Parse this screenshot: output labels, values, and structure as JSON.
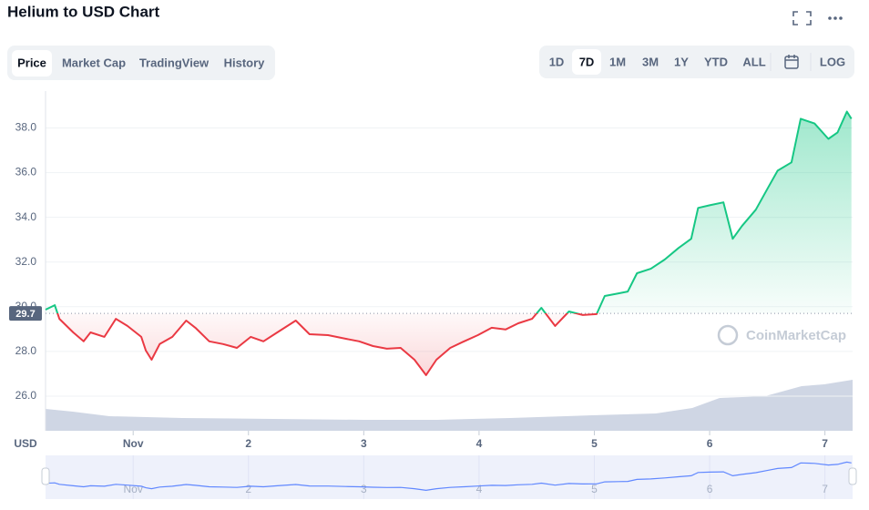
{
  "header": {
    "title": "Helium to USD Chart"
  },
  "tabs": {
    "items": [
      "Price",
      "Market Cap",
      "TradingView",
      "History"
    ],
    "active": 0
  },
  "ranges": {
    "items": [
      "1D",
      "7D",
      "1M",
      "3M",
      "1Y",
      "YTD",
      "ALL"
    ],
    "active": 1,
    "log": "LOG"
  },
  "watermark": "CoinMarketCap",
  "chart_data": {
    "type": "line",
    "x_label": "USD",
    "x": [
      0.24,
      0.32,
      0.36,
      0.48,
      0.57,
      0.63,
      0.75,
      0.85,
      0.95,
      1.07,
      1.11,
      1.16,
      1.23,
      1.34,
      1.46,
      1.54,
      1.66,
      1.78,
      1.9,
      2.02,
      2.13,
      2.25,
      2.41,
      2.53,
      2.69,
      2.84,
      2.96,
      3.08,
      3.2,
      3.32,
      3.44,
      3.54,
      3.63,
      3.75,
      3.87,
      3.99,
      4.11,
      4.23,
      4.34,
      4.46,
      4.54,
      4.66,
      4.78,
      4.9,
      5.02,
      5.09,
      5.21,
      5.29,
      5.37,
      5.49,
      5.61,
      5.73,
      5.84,
      5.9,
      6.0,
      6.12,
      6.2,
      6.28,
      6.4,
      6.51,
      6.59,
      6.71,
      6.79,
      6.91,
      7.03,
      7.11,
      7.19,
      7.23
    ],
    "values": [
      29.87,
      30.07,
      29.46,
      28.85,
      28.45,
      28.85,
      28.65,
      29.46,
      29.14,
      28.65,
      28.04,
      27.63,
      28.33,
      28.65,
      29.38,
      29.06,
      28.45,
      28.33,
      28.16,
      28.65,
      28.45,
      28.85,
      29.38,
      28.77,
      28.73,
      28.57,
      28.45,
      28.24,
      28.12,
      28.16,
      27.63,
      26.94,
      27.63,
      28.16,
      28.45,
      28.73,
      29.06,
      28.98,
      29.26,
      29.46,
      29.95,
      29.14,
      29.79,
      29.63,
      29.67,
      30.48,
      30.6,
      30.68,
      31.5,
      31.7,
      32.11,
      32.63,
      33.04,
      34.42,
      34.54,
      34.67,
      33.04,
      33.61,
      34.34,
      35.36,
      36.09,
      36.46,
      38.41,
      38.2,
      37.51,
      37.8,
      38.73,
      38.41
    ],
    "baseline": {
      "value": 29.7,
      "label": "29.7"
    },
    "up_color": "#16c784",
    "down_color": "#ea3943",
    "xlim": [
      0.24,
      7.24
    ],
    "xticks": [
      {
        "value": 1,
        "label": "Nov"
      },
      2,
      3,
      4,
      5,
      6,
      7
    ],
    "ylim": [
      24.45,
      39.65
    ],
    "yticks": [
      {
        "value": 26,
        "label": "26.0"
      },
      {
        "value": 28,
        "label": "28.0"
      },
      {
        "value": 30,
        "label": "30.0"
      },
      {
        "value": 32,
        "label": "32.0"
      },
      {
        "value": 34,
        "label": "34.0"
      },
      {
        "value": 36,
        "label": "36.0"
      },
      {
        "value": 38,
        "label": "38.0"
      }
    ],
    "grid": true
  }
}
